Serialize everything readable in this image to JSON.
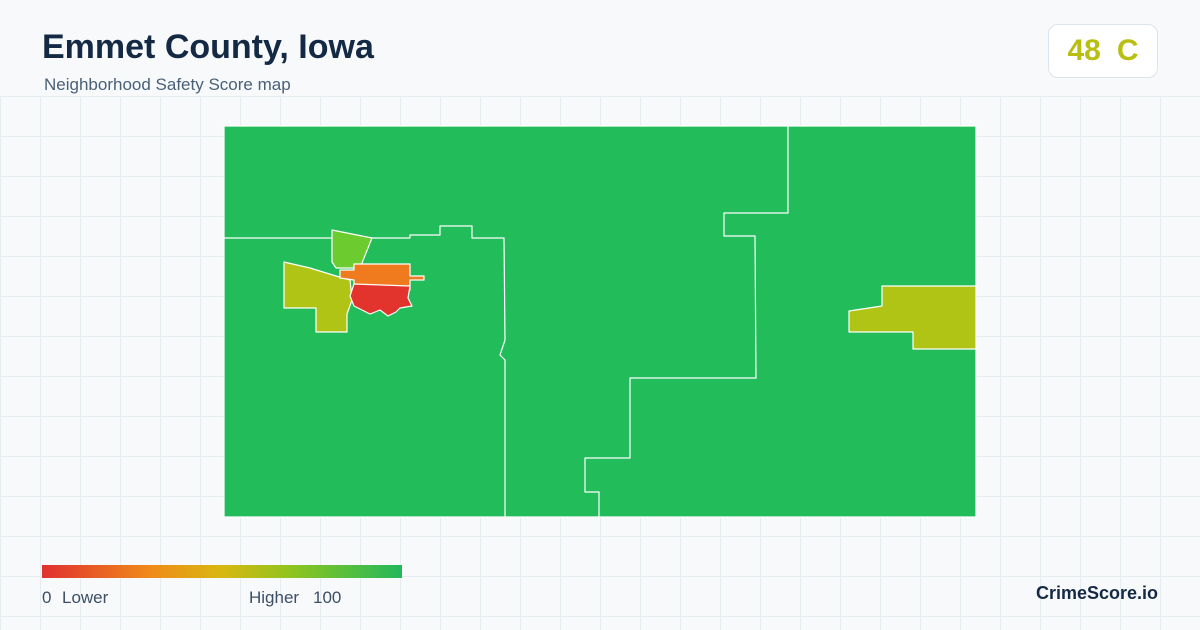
{
  "header": {
    "title": "Emmet County, Iowa",
    "subtitle": "Neighborhood Safety Score map"
  },
  "score": {
    "value": "48",
    "grade": "C"
  },
  "legend": {
    "min": "0",
    "min_label": "Lower",
    "max_label": "Higher",
    "max": "100"
  },
  "brand": "CrimeScore.io"
}
